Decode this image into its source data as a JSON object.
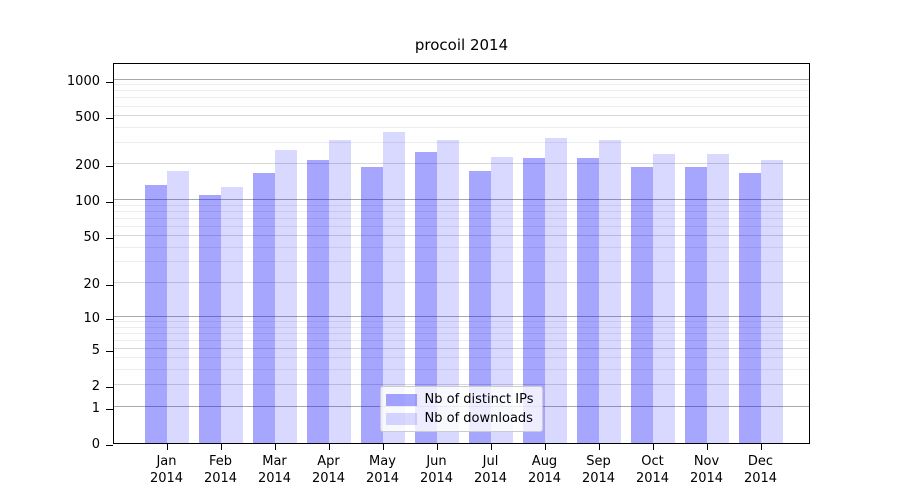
{
  "title": "procoil 2014",
  "colors": {
    "bar_distinct_ips": "rgba(0,0,255,0.35)",
    "bar_downloads": "rgba(0,0,255,0.15)",
    "grid_power10": "#a8a8a8",
    "grid_labeled": "#d8d8d8",
    "grid_minor": "#ececec",
    "axis": "#000000",
    "legend_border": "#cccccc",
    "legend_background": "rgba(255,255,255,0.8)"
  },
  "legend": {
    "items": [
      {
        "label": "Nb of distinct IPs",
        "color_key": "bar_distinct_ips"
      },
      {
        "label": "Nb of downloads",
        "color_key": "bar_downloads"
      }
    ]
  },
  "chart_data": {
    "type": "bar",
    "title": "procoil 2014",
    "categories": [
      "Jan",
      "Feb",
      "Mar",
      "Apr",
      "May",
      "Jun",
      "Jul",
      "Aug",
      "Sep",
      "Oct",
      "Nov",
      "Dec"
    ],
    "x_year_label": "2014",
    "series": [
      {
        "name": "Nb of distinct IPs",
        "values": [
          135,
          110,
          170,
          215,
          190,
          250,
          175,
          225,
          225,
          190,
          188,
          170
        ]
      },
      {
        "name": "Nb of downloads",
        "values": [
          175,
          130,
          260,
          315,
          370,
          315,
          230,
          330,
          320,
          245,
          245,
          215
        ]
      }
    ],
    "yscale": "log1p",
    "yticks": [
      0,
      1,
      2,
      5,
      10,
      20,
      50,
      100,
      200,
      500,
      1000
    ],
    "minor_yticks": [
      3,
      4,
      6,
      7,
      8,
      9,
      30,
      40,
      60,
      70,
      80,
      90,
      300,
      400,
      600,
      700,
      800,
      900
    ],
    "ylim": [
      0,
      1400
    ],
    "grid": "on",
    "legend_position": "lower center"
  }
}
